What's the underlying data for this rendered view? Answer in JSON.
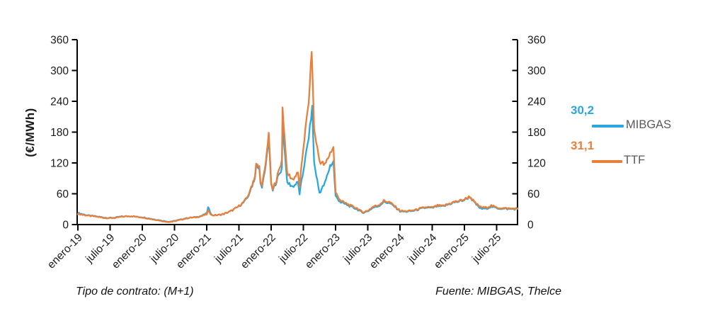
{
  "window": {
    "background": "#ffffff"
  },
  "y_axis": {
    "title": "(€/MWh)",
    "ticks": [
      0,
      60,
      120,
      180,
      240,
      300,
      360
    ],
    "min": 0,
    "max": 360
  },
  "x_axis": {
    "labels": [
      "enero-19",
      "julio-19",
      "enero-20",
      "julio-20",
      "enero-21",
      "julio-21",
      "enero-22",
      "julio-22",
      "enero-23",
      "julio-23",
      "enero-24",
      "julio-24",
      "enero-25",
      "julio-25"
    ]
  },
  "legend": {
    "label_color": "#595959",
    "items": [
      {
        "name": "MIBGAS",
        "value_label": "30,2",
        "color": "#2BA7DF"
      },
      {
        "name": "TTF",
        "value_label": "31,1",
        "color": "#E8803C"
      }
    ]
  },
  "footer": {
    "left": "Tipo de contrato: (M+1)",
    "right": "Fuente: MIBGAS, Thelce"
  },
  "chart_data": {
    "type": "line",
    "title": "",
    "ylabel": "(€/MWh)",
    "ylim": [
      0,
      360
    ],
    "grid": false,
    "legend_position": "right",
    "unit": "EUR/MWh",
    "months_start": "2019-01",
    "months_end": "2025-10",
    "x_tick_labels": [
      "enero-19",
      "julio-19",
      "enero-20",
      "julio-20",
      "enero-21",
      "julio-21",
      "enero-22",
      "julio-22",
      "enero-23",
      "julio-23",
      "enero-24",
      "julio-24",
      "enero-25",
      "julio-25"
    ],
    "series": [
      {
        "name": "MIBGAS",
        "color": "#2BA7DF",
        "current_value": 30.2,
        "monthly_values": [
          22.5,
          20,
          17.5,
          16.5,
          15,
          13.5,
          13,
          13.5,
          15.5,
          16,
          16.5,
          15,
          14.5,
          12.5,
          10.5,
          9,
          7,
          5.5,
          7,
          9.5,
          12,
          13.5,
          14.5,
          17,
          21.5,
          18,
          18.5,
          20,
          24,
          29,
          36,
          44,
          60,
          92,
          85,
          115,
          76,
          85,
          110,
          82,
          74,
          82,
          105,
          170,
          120,
          62,
          80,
          115,
          55,
          43,
          39,
          34,
          30,
          23,
          26,
          33,
          36,
          44,
          42,
          35,
          26,
          25,
          26,
          28,
          31,
          33,
          32,
          36,
          35,
          39,
          43,
          45,
          48,
          54,
          41,
          31,
          31,
          35,
          32,
          31,
          30.5,
          30.2
        ],
        "spike_points": [
          [
            24.25,
            33
          ],
          [
            32.3,
            72
          ],
          [
            33.2,
            112
          ],
          [
            33.8,
            108
          ],
          [
            34.3,
            70
          ],
          [
            35.55,
            170
          ],
          [
            36.3,
            66
          ],
          [
            38.12,
            195
          ],
          [
            41.3,
            60
          ],
          [
            43.65,
            228
          ],
          [
            47.6,
            122
          ]
        ]
      },
      {
        "name": "TTF",
        "color": "#E8803C",
        "current_value": 31.1,
        "monthly_values": [
          21,
          19,
          17,
          16,
          14.5,
          13,
          12.5,
          13,
          15,
          16,
          16.5,
          15,
          14,
          12,
          10,
          8.5,
          6,
          5,
          6.5,
          9,
          11.5,
          13.5,
          14,
          16.5,
          20,
          18,
          18.5,
          20,
          24,
          29,
          36,
          45,
          62,
          95,
          88,
          120,
          78,
          88,
          126,
          100,
          88,
          100,
          150,
          240,
          185,
          125,
          115,
          140,
          62,
          46,
          41,
          36,
          32,
          24,
          27,
          35,
          38,
          46,
          44,
          36,
          27,
          26,
          27,
          29,
          32,
          34,
          33,
          37,
          36,
          40,
          44,
          46,
          49,
          55,
          42,
          34,
          33,
          37,
          33,
          32,
          31.5,
          31.1
        ],
        "spike_points": [
          [
            24.25,
            27
          ],
          [
            32.3,
            74
          ],
          [
            33.2,
            116
          ],
          [
            33.8,
            112
          ],
          [
            34.3,
            74
          ],
          [
            35.55,
            180
          ],
          [
            36.3,
            68
          ],
          [
            38.12,
            227
          ],
          [
            41.3,
            74
          ],
          [
            43.55,
            340
          ],
          [
            47.6,
            150
          ]
        ]
      }
    ]
  }
}
